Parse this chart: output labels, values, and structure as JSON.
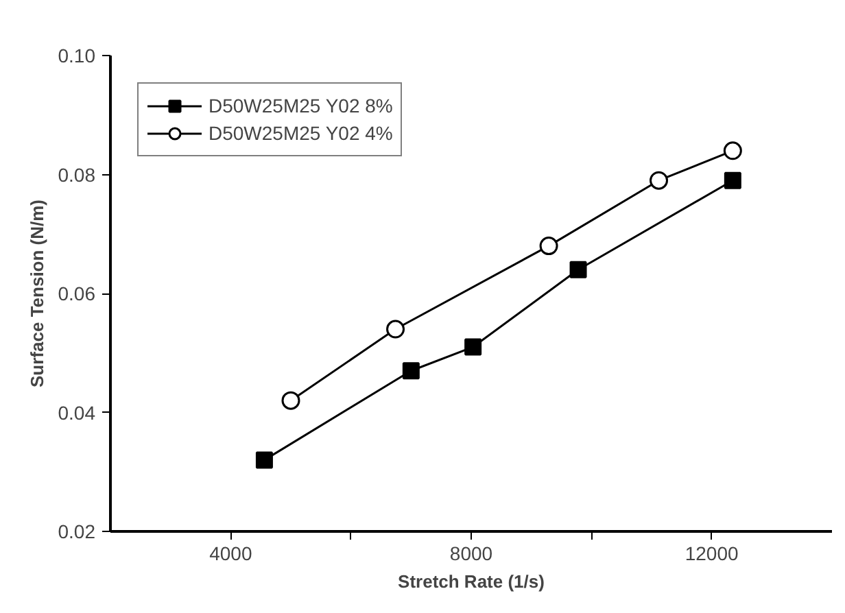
{
  "chart_data": {
    "type": "line",
    "xlabel": "Stretch Rate (1/s)",
    "ylabel": "Surface Tension (N/m)",
    "xlim": [
      2000,
      14000
    ],
    "xticks": [
      4000,
      {
        "value": 6000,
        "label": null
      },
      8000,
      {
        "value": 10000,
        "label": null
      },
      12000
    ],
    "ylim": [
      0.02,
      0.1
    ],
    "yticks": [
      {
        "value": 0.02,
        "label": "0.02"
      },
      {
        "value": 0.04,
        "label": "0.04"
      },
      {
        "value": 0.06,
        "label": "0.06"
      },
      {
        "value": 0.08,
        "label": "0.08"
      },
      {
        "value": 0.1,
        "label": "0.10"
      }
    ],
    "grid": false,
    "legend": "top left",
    "line_style": "solid",
    "series": [
      {
        "name": "D50W25M25 Y02 8%",
        "color": "#000000",
        "marker": "square",
        "x": [
          4560,
          7000,
          8030,
          9780,
          12350
        ],
        "values": [
          0.032,
          0.047,
          0.051,
          0.064,
          0.079
        ]
      },
      {
        "name": "D50W25M25 Y02 4%",
        "color": "#000000",
        "marker": "circle",
        "x": [
          5000,
          6740,
          9290,
          11120,
          12350
        ],
        "values": [
          0.042,
          0.054,
          0.068,
          0.079,
          0.084
        ]
      }
    ]
  }
}
